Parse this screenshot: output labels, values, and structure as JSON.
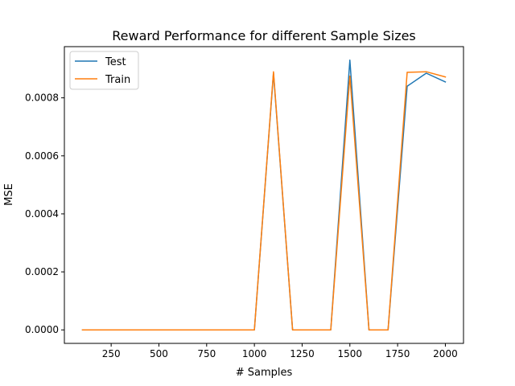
{
  "chart_data": {
    "type": "line",
    "title": "Reward Performance for different Sample Sizes",
    "xlabel": "# Samples",
    "ylabel": "MSE",
    "xlim": [
      5,
      2095
    ],
    "ylim": [
      -4.65e-05,
      0.0009765
    ],
    "x": [
      100,
      200,
      300,
      400,
      500,
      600,
      700,
      800,
      900,
      1000,
      1100,
      1200,
      1300,
      1400,
      1500,
      1600,
      1700,
      1800,
      1900,
      2000
    ],
    "xticks": [
      250,
      500,
      750,
      1000,
      1250,
      1500,
      1750,
      2000
    ],
    "xtick_labels": [
      "250",
      "500",
      "750",
      "1000",
      "1250",
      "1500",
      "1750",
      "2000"
    ],
    "yticks": [
      0,
      0.0002,
      0.0004,
      0.0006,
      0.0008
    ],
    "ytick_labels": [
      "0.0000",
      "0.0002",
      "0.0004",
      "0.0006",
      "0.0008"
    ],
    "grid": false,
    "legend_position": "top-left",
    "series": [
      {
        "name": "Test",
        "color": "#1f77b4",
        "values": [
          0,
          0,
          0,
          0,
          0,
          0,
          0,
          0,
          0,
          0,
          0.000885,
          0,
          0,
          0,
          0.00093,
          0,
          0,
          0.00084,
          0.000885,
          0.000855
        ]
      },
      {
        "name": "Train",
        "color": "#ff7f0e",
        "values": [
          0,
          0,
          0,
          0,
          0,
          0,
          0,
          0,
          0,
          0,
          0.00089,
          0,
          0,
          0,
          0.000875,
          0,
          0,
          0.000888,
          0.00089,
          0.000872
        ]
      }
    ]
  }
}
